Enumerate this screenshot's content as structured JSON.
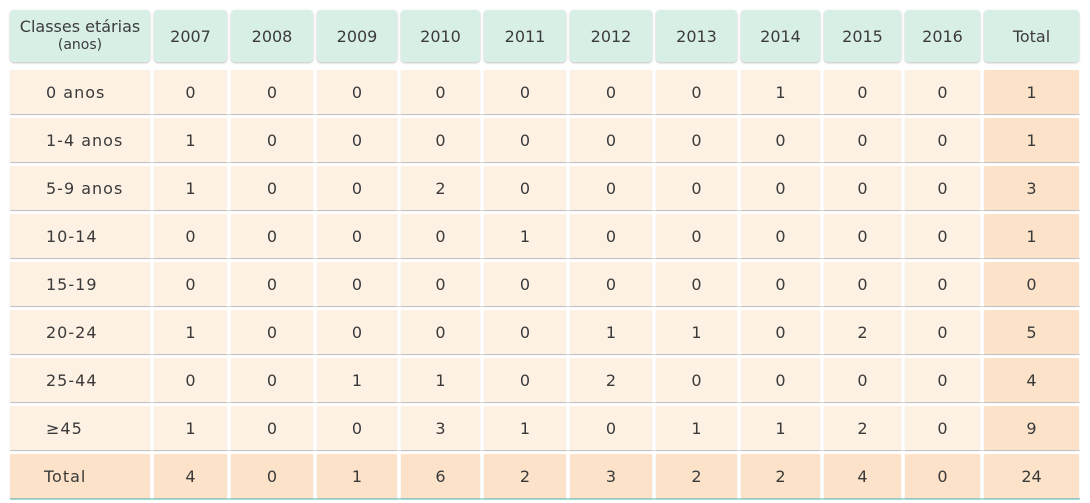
{
  "chart_data": {
    "type": "table",
    "header_first_line1": "Classes etárias",
    "header_first_line2": "(anos)",
    "columns": [
      "2007",
      "2008",
      "2009",
      "2010",
      "2011",
      "2012",
      "2013",
      "2014",
      "2015",
      "2016",
      "Total"
    ],
    "rows": [
      {
        "label": "0 anos",
        "values": [
          "0",
          "0",
          "0",
          "0",
          "0",
          "0",
          "0",
          "1",
          "0",
          "0",
          "1"
        ]
      },
      {
        "label": "1-4 anos",
        "values": [
          "1",
          "0",
          "0",
          "0",
          "0",
          "0",
          "0",
          "0",
          "0",
          "0",
          "1"
        ]
      },
      {
        "label": "5-9 anos",
        "values": [
          "1",
          "0",
          "0",
          "2",
          "0",
          "0",
          "0",
          "0",
          "0",
          "0",
          "3"
        ]
      },
      {
        "label": "10-14",
        "values": [
          "0",
          "0",
          "0",
          "0",
          "1",
          "0",
          "0",
          "0",
          "0",
          "0",
          "1"
        ]
      },
      {
        "label": "15-19",
        "values": [
          "0",
          "0",
          "0",
          "0",
          "0",
          "0",
          "0",
          "0",
          "0",
          "0",
          "0"
        ]
      },
      {
        "label": "20-24",
        "values": [
          "1",
          "0",
          "0",
          "0",
          "0",
          "1",
          "1",
          "0",
          "2",
          "0",
          "5"
        ]
      },
      {
        "label": "25-44",
        "values": [
          "0",
          "0",
          "1",
          "1",
          "0",
          "2",
          "0",
          "0",
          "0",
          "0",
          "4"
        ]
      },
      {
        "label": "≥45",
        "values": [
          "1",
          "0",
          "0",
          "3",
          "1",
          "0",
          "1",
          "1",
          "2",
          "0",
          "9"
        ]
      },
      {
        "label": "Total",
        "values": [
          "4",
          "0",
          "1",
          "6",
          "2",
          "3",
          "2",
          "2",
          "4",
          "0",
          "24"
        ]
      }
    ],
    "colors": {
      "header_bg": "#d8efe6",
      "body_bg": "#fdf1e4",
      "total_bg": "#fbe2c8"
    }
  }
}
